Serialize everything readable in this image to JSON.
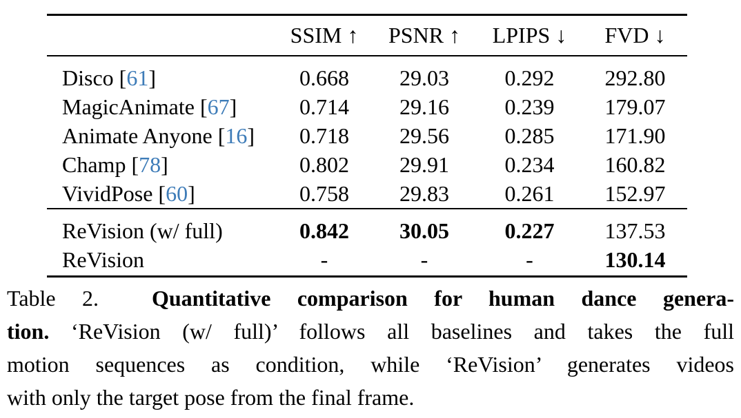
{
  "colors": {
    "citation_blue": "#3e7cb8",
    "text": "#000000",
    "background": "#ffffff"
  },
  "table": {
    "columns": [
      "SSIM ↑",
      "PSNR ↑",
      "LPIPS ↓",
      "FVD ↓"
    ],
    "baselines": [
      {
        "method": "Disco",
        "cite": "61",
        "values": [
          "0.668",
          "29.03",
          "0.292",
          "292.80"
        ],
        "bold": [
          false,
          false,
          false,
          false
        ]
      },
      {
        "method": "MagicAnimate",
        "cite": "67",
        "values": [
          "0.714",
          "29.16",
          "0.239",
          "179.07"
        ],
        "bold": [
          false,
          false,
          false,
          false
        ]
      },
      {
        "method": "Animate Anyone",
        "cite": "16",
        "values": [
          "0.718",
          "29.56",
          "0.285",
          "171.90"
        ],
        "bold": [
          false,
          false,
          false,
          false
        ]
      },
      {
        "method": "Champ",
        "cite": "78",
        "values": [
          "0.802",
          "29.91",
          "0.234",
          "160.82"
        ],
        "bold": [
          false,
          false,
          false,
          false
        ]
      },
      {
        "method": "VividPose",
        "cite": "60",
        "values": [
          "0.758",
          "29.83",
          "0.261",
          "152.97"
        ],
        "bold": [
          false,
          false,
          false,
          false
        ]
      }
    ],
    "ours": [
      {
        "method": "ReVision (w/ full)",
        "cite": null,
        "values": [
          "0.842",
          "30.05",
          "0.227",
          "137.53"
        ],
        "bold": [
          true,
          true,
          true,
          false
        ]
      },
      {
        "method": "ReVision",
        "cite": null,
        "values": [
          "-",
          "-",
          "-",
          "130.14"
        ],
        "bold": [
          false,
          false,
          false,
          true
        ]
      }
    ]
  },
  "caption": {
    "label": "Table 2.",
    "lines": [
      [
        {
          "text": "Table 2.  ",
          "bold": false
        },
        {
          "text": "Quantitative comparison for human dance genera-",
          "bold": true
        }
      ],
      [
        {
          "text": "tion.",
          "bold": true
        },
        {
          "text": " ‘ReVision (w/ full)’ follows all baselines and takes the full",
          "bold": false
        }
      ],
      [
        {
          "text": "motion sequences as condition, while ‘ReVision’ generates videos",
          "bold": false
        }
      ],
      [
        {
          "text": "with only the target pose from the final frame.",
          "bold": false
        }
      ]
    ]
  }
}
